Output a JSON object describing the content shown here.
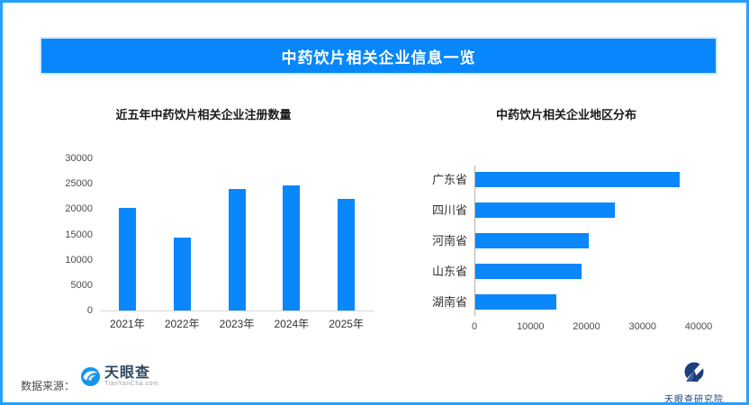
{
  "header": {
    "title": "中药饮片相关企业信息一览"
  },
  "colors": {
    "frame_border": "#25A0FF",
    "banner_bg": "#0787FB",
    "bar_blue": "#0A87FA"
  },
  "chart_data": [
    {
      "type": "bar",
      "orientation": "vertical",
      "title": "近五年中药饮片相关企业注册数量",
      "categories": [
        "2021年",
        "2022年",
        "2023年",
        "2024年",
        "2025年"
      ],
      "values": [
        20200,
        14300,
        24000,
        24600,
        22100
      ],
      "ylabel": "",
      "xlabel": "",
      "ylim": [
        0,
        30000
      ],
      "yticks": [
        0,
        5000,
        10000,
        15000,
        20000,
        25000,
        30000
      ],
      "grid": false,
      "legend": false,
      "bar_color": "#0A87FA"
    },
    {
      "type": "bar",
      "orientation": "horizontal",
      "title": "中药饮片相关企业地区分布",
      "categories": [
        "广东省",
        "四川省",
        "河南省",
        "山东省",
        "湖南省"
      ],
      "values": [
        36400,
        24900,
        20300,
        18900,
        14400
      ],
      "ylabel": "",
      "xlabel": "",
      "xlim": [
        0,
        40000
      ],
      "xticks": [
        0,
        10000,
        20000,
        30000,
        40000
      ],
      "grid": false,
      "legend": false,
      "bar_color": "#0A87FA"
    }
  ],
  "footer": {
    "source_label": "数据来源：",
    "tianyancha": {
      "name": "天眼查",
      "domain": "TianYanCha.com"
    },
    "institute": {
      "name": "天眼查研究院"
    }
  }
}
